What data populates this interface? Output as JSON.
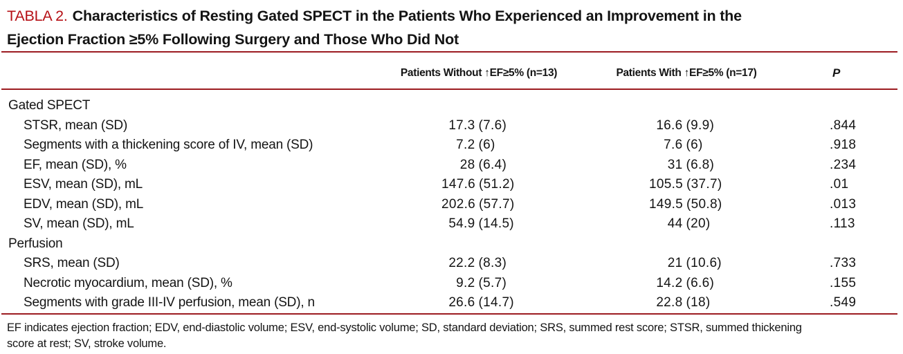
{
  "colors": {
    "accent_red": "#b50f15",
    "rule_red": "#9c1b20",
    "text_black": "#141414"
  },
  "title": {
    "label": "TABLA 2.",
    "text": "Characteristics of Resting Gated SPECT in the Patients Who Experienced an Improvement in the\nEjection Fraction ≥5% Following Surgery and Those Who Did Not"
  },
  "table": {
    "columns": {
      "group_without": "Patients Without ↑EF≥5% (n=13)",
      "group_with": "Patients With ↑EF≥5% (n=17)",
      "p": "P"
    },
    "rows": [
      {
        "label": "Gated SPECT"
      },
      {
        "label": "STSR, mean (SD)",
        "c1m": "17.3",
        "c1s": "(7.6)",
        "c2m": "16.6",
        "c2s": "(9.9)",
        "p": ".844"
      },
      {
        "label": "Segments with a thickening score of IV, mean (SD)",
        "c1m": "7.2",
        "c1s": "(6)",
        "c2m": "7.6",
        "c2s": "(6)",
        "p": ".918"
      },
      {
        "label": "EF, mean (SD), %",
        "c1m": "28",
        "c1s": "(6.4)",
        "c2m": "31",
        "c2s": "(6.8)",
        "p": ".234"
      },
      {
        "label": "ESV, mean (SD), mL",
        "c1m": "147.6",
        "c1s": "(51.2)",
        "c2m": "105.5",
        "c2s": "(37.7)",
        "p": ".01"
      },
      {
        "label": "EDV, mean (SD), mL",
        "c1m": "202.6",
        "c1s": "(57.7)",
        "c2m": "149.5",
        "c2s": "(50.8)",
        "p": ".013"
      },
      {
        "label": "SV, mean (SD), mL",
        "c1m": "54.9",
        "c1s": "(14.5)",
        "c2m": "44",
        "c2s": "(20)",
        "p": ".113"
      },
      {
        "label": "Perfusion"
      },
      {
        "label": "SRS, mean (SD)",
        "c1m": "22.2",
        "c1s": "(8.3)",
        "c2m": "21",
        "c2s": "(10.6)",
        "p": ".733"
      },
      {
        "label": "Necrotic myocardium, mean (SD), %",
        "c1m": "9.2",
        "c1s": "(5.7)",
        "c2m": "14.2",
        "c2s": "(6.6)",
        "p": ".155"
      },
      {
        "label": "Segments with grade III-IV perfusion, mean (SD), n",
        "c1m": "26.6",
        "c1s": "(14.7)",
        "c2m": "22.8",
        "c2s": "(18)",
        "p": ".549"
      }
    ]
  },
  "footnote": "EF indicates ejection fraction; EDV, end-diastolic volume; ESV, end-systolic volume; SD, standard deviation; SRS, summed rest score; STSR, summed thickening\nscore at rest; SV, stroke volume."
}
